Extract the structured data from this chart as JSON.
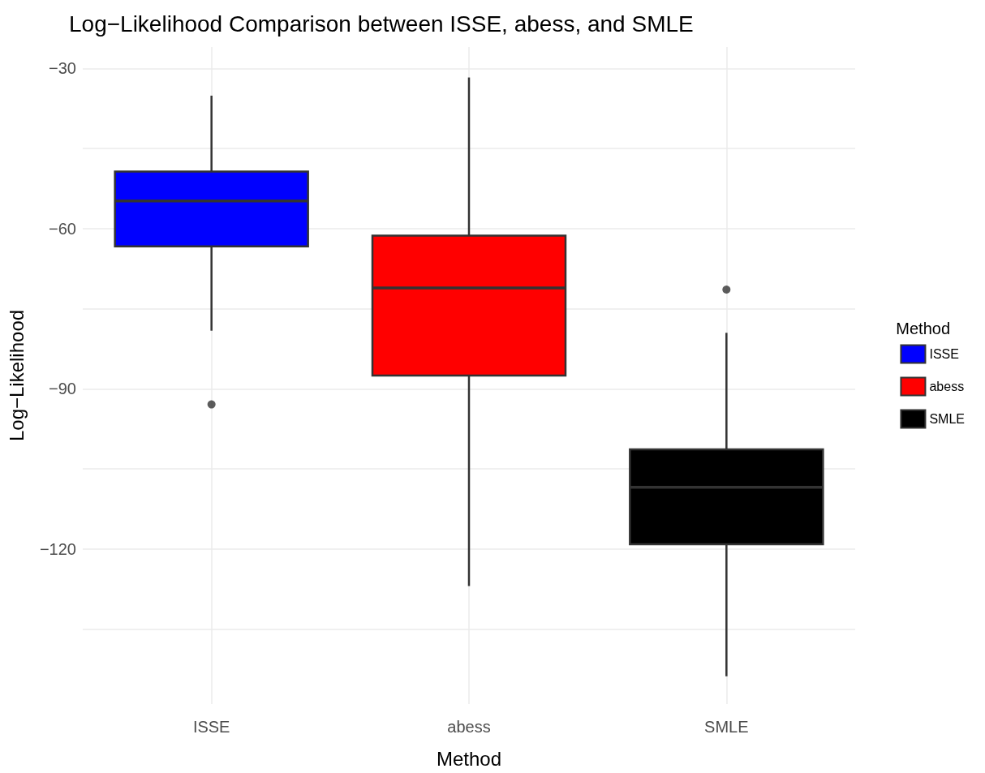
{
  "chart_data": {
    "type": "box",
    "title": "Log−Likelihood Comparison between ISSE, abess, and SMLE",
    "xlabel": "Method",
    "ylabel": "Log−Likelihood",
    "legend_title": "Method",
    "categories": [
      "ISSE",
      "abess",
      "SMLE"
    ],
    "series": [
      {
        "name": "ISSE",
        "color": "#0000ff",
        "boxes": [
          {
            "low": -79.1,
            "q1": -63.3,
            "median": -54.8,
            "q3": -49.3,
            "high": -35.1,
            "outliers": [
              -92.9
            ]
          },
          null,
          null
        ]
      },
      {
        "name": "abess",
        "color": "#ff0000",
        "boxes": [
          null,
          {
            "low": -126.9,
            "q1": -87.5,
            "median": -71.1,
            "q3": -61.3,
            "high": -31.7
          },
          null
        ]
      },
      {
        "name": "SMLE",
        "color": "#000000",
        "boxes": [
          null,
          null,
          {
            "low": -143.8,
            "q1": -119.1,
            "median": -108.4,
            "q3": -101.3,
            "high": -79.5,
            "outliers": [
              -71.4
            ]
          }
        ]
      }
    ],
    "ylim": [
      -149,
      -26
    ],
    "yticks": [
      {
        "value": -135,
        "label": null
      },
      -120,
      {
        "value": -105,
        "label": null
      },
      -90,
      {
        "value": -75,
        "label": null
      },
      -60,
      {
        "value": -45,
        "label": null
      },
      -30
    ],
    "grid": true,
    "legend": "right"
  }
}
